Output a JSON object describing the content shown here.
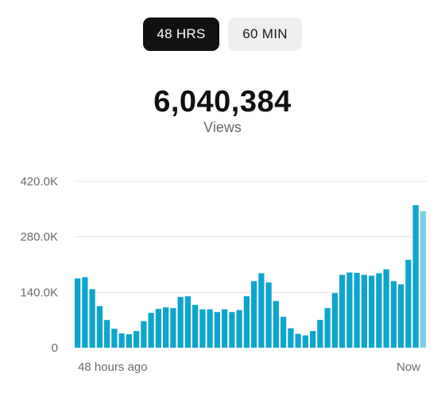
{
  "tabs": {
    "left_label": "48 HRS",
    "right_label": "60 MIN",
    "active": "48 HRS"
  },
  "summary": {
    "total": "6,040,384",
    "label": "Views"
  },
  "colors": {
    "bar": "#0ea5cc",
    "bar_current": "#7cd0e6",
    "gridline": "#e4e4e4",
    "active_tab_bg": "#111111",
    "inactive_tab_bg": "#efefef"
  },
  "chart_data": {
    "type": "bar",
    "ylim": [
      0,
      420000
    ],
    "yticks": [
      {
        "value": 0,
        "label": "0"
      },
      {
        "value": 140000,
        "label": "140.0K"
      },
      {
        "value": 280000,
        "label": "280.0K"
      },
      {
        "value": 420000,
        "label": "420.0K"
      }
    ],
    "x_start_label": "48 hours ago",
    "x_end_label": "Now",
    "grid": true,
    "values": [
      175000,
      178000,
      148000,
      105000,
      70000,
      48000,
      36000,
      34000,
      42000,
      67000,
      88000,
      98000,
      102000,
      100000,
      128000,
      130000,
      108000,
      97000,
      97000,
      90000,
      97000,
      90000,
      95000,
      130000,
      168000,
      188000,
      165000,
      118000,
      78000,
      49000,
      35000,
      31000,
      42000,
      70000,
      100000,
      138000,
      184000,
      190000,
      189000,
      184000,
      182000,
      188000,
      198000,
      168000,
      160000,
      222000,
      360000,
      345000
    ],
    "current_index": 47
  }
}
